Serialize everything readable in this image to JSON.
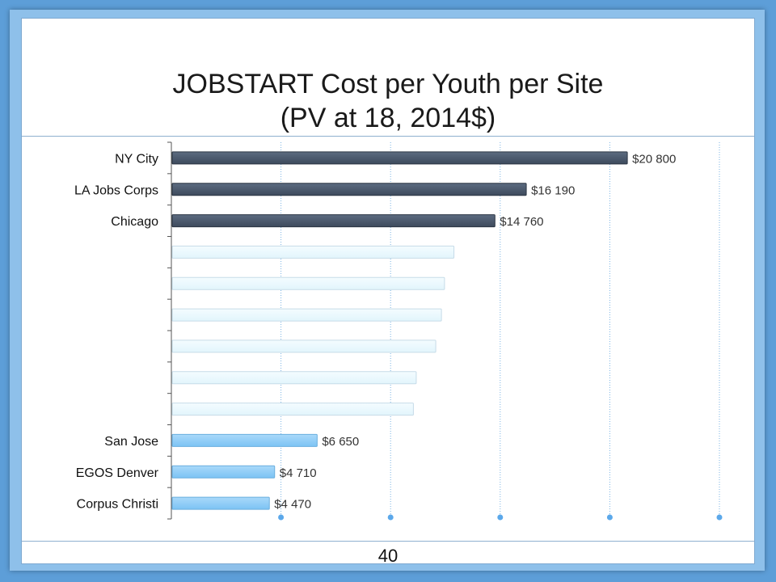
{
  "slide": {
    "title_line1": "JOBSTART Cost per Youth per Site",
    "title_line2": "(PV at 18, 2014$)",
    "page_number": "40"
  },
  "chart_data": {
    "type": "bar",
    "orientation": "horizontal",
    "categories": [
      "NY City",
      "LA Jobs Corps",
      "Chicago",
      "",
      "",
      "",
      "",
      "",
      "",
      "San Jose",
      "EGOS Denver",
      "Corpus Christi"
    ],
    "values": [
      20800,
      16190,
      14760,
      12890,
      12460,
      12320,
      12060,
      11170,
      11040,
      6650,
      4710,
      4470
    ],
    "data_labels": [
      "$20 800",
      "$16 190",
      "$14 760",
      "",
      "",
      "",
      "",
      "",
      "",
      "$6 650",
      "$4 710",
      "$4 470"
    ],
    "xlim": [
      0,
      25000
    ],
    "gridlines": true,
    "colors": {
      "dark": "#3d4a5c",
      "light": "#e2f5fc",
      "blue": "#7cc3f4",
      "grid": "#7ab3e3"
    }
  }
}
